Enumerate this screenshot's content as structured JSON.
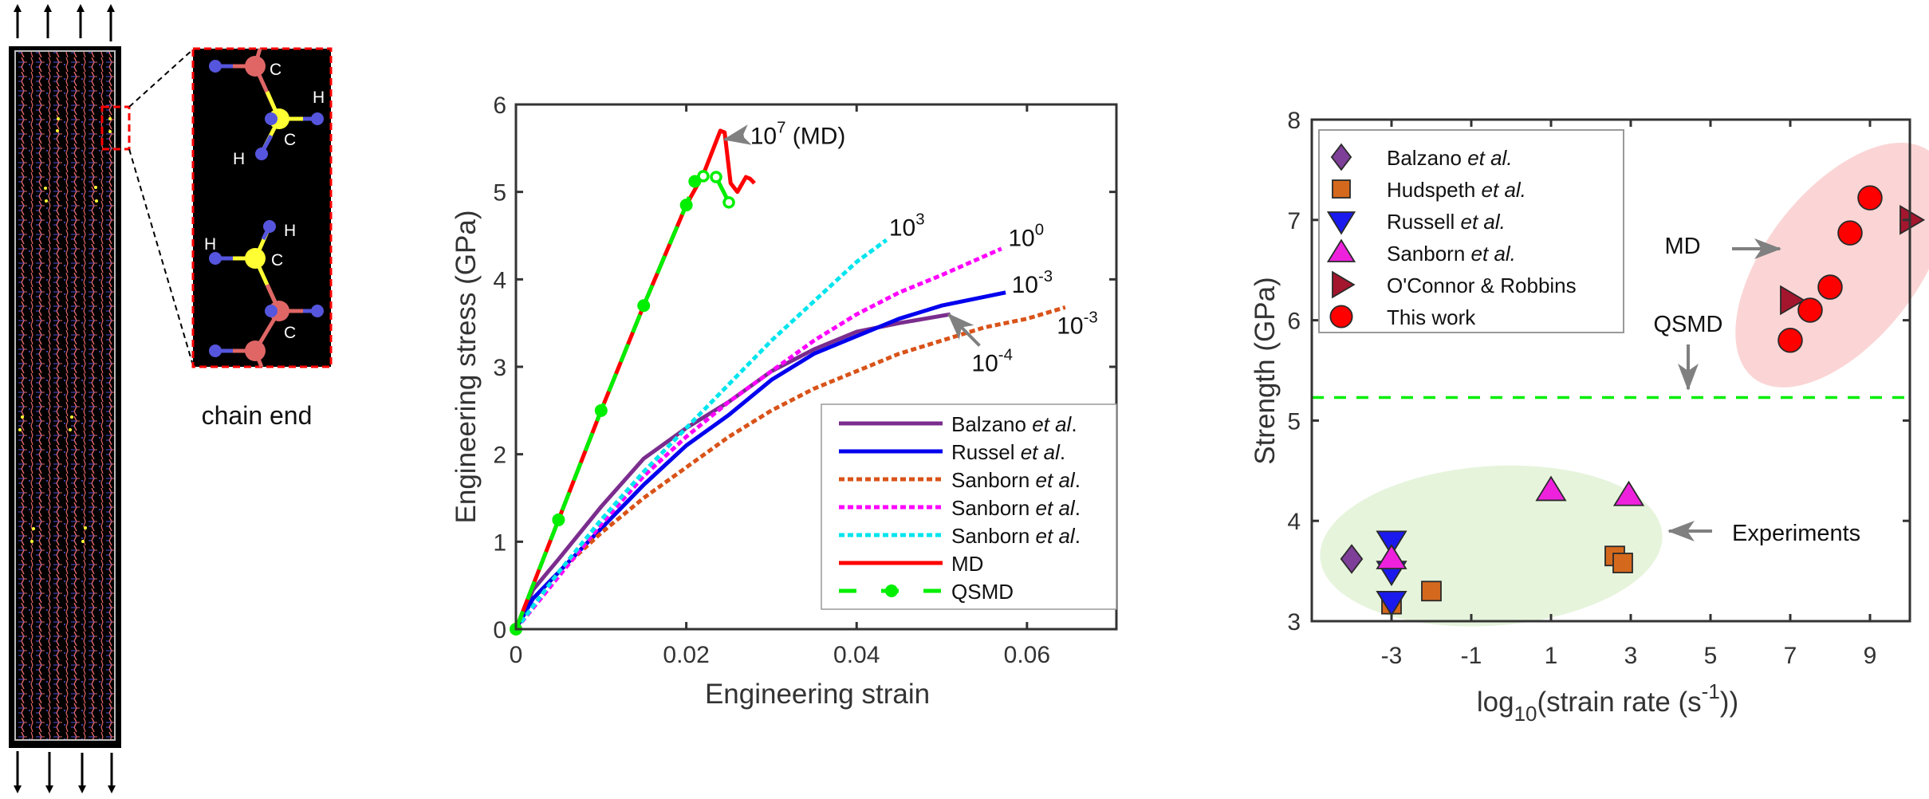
{
  "panel_a": {
    "inset_label": "chain end",
    "atom_labels": [
      "C",
      "H",
      "C",
      "H",
      "H",
      "H",
      "C",
      "C"
    ],
    "colors": {
      "carbon_backbone": "#e06666",
      "chain_end_carbon": "#ffff33",
      "hydrogen": "#5555dd",
      "highlight_box": "#ff0000"
    }
  },
  "chart_data": [
    {
      "type": "line",
      "xlabel": "Engineering strain",
      "ylabel": "Engineering stress (GPa)",
      "xlim": [
        0,
        0.0705
      ],
      "ylim": [
        0,
        6
      ],
      "xticks": [
        0,
        0.02,
        0.04,
        0.06
      ],
      "xtick_labels": [
        "0",
        "0.02",
        "0.04",
        "0.06"
      ],
      "yticks": [
        0,
        1,
        2,
        3,
        4,
        5,
        6
      ],
      "ytick_labels": [
        "0",
        "1",
        "2",
        "3",
        "4",
        "5",
        "6"
      ],
      "legend_position": "bottom-right",
      "series": [
        {
          "name": "Balzano et al.",
          "name_main": "Balzano ",
          "name_ital": "et al",
          "name_end": ".",
          "color": "#7b2d8e",
          "style": "solid",
          "x": [
            0,
            0.002,
            0.005,
            0.01,
            0.015,
            0.02,
            0.025,
            0.03,
            0.035,
            0.04,
            0.045,
            0.051
          ],
          "y": [
            0,
            0.45,
            0.8,
            1.4,
            1.95,
            2.3,
            2.6,
            2.95,
            3.2,
            3.4,
            3.5,
            3.6
          ]
        },
        {
          "name": "Russel et al.",
          "name_main": "Russel ",
          "name_ital": "et al",
          "name_end": ".",
          "color": "#0000ee",
          "style": "solid",
          "x": [
            0,
            0.002,
            0.005,
            0.01,
            0.015,
            0.02,
            0.025,
            0.03,
            0.035,
            0.04,
            0.045,
            0.05,
            0.0575
          ],
          "y": [
            0,
            0.35,
            0.65,
            1.15,
            1.65,
            2.1,
            2.45,
            2.85,
            3.15,
            3.35,
            3.55,
            3.7,
            3.85
          ]
        },
        {
          "name": "Sanborn et al.",
          "name_main": "Sanborn ",
          "name_ital": "et al",
          "name_end": ".",
          "color": "#d95319",
          "style": "dotted",
          "x": [
            0,
            0.005,
            0.01,
            0.015,
            0.02,
            0.025,
            0.03,
            0.035,
            0.04,
            0.045,
            0.05,
            0.055,
            0.06,
            0.0645
          ],
          "y": [
            0,
            0.65,
            1.1,
            1.5,
            1.85,
            2.2,
            2.5,
            2.75,
            2.95,
            3.15,
            3.3,
            3.45,
            3.55,
            3.68
          ]
        },
        {
          "name": "Sanborn et al.",
          "name_main": "Sanborn ",
          "name_ital": "et al",
          "name_end": ".",
          "color": "#ff00ff",
          "style": "dotted",
          "x": [
            0,
            0.005,
            0.01,
            0.015,
            0.02,
            0.025,
            0.03,
            0.035,
            0.04,
            0.045,
            0.05,
            0.057
          ],
          "y": [
            0,
            0.6,
            1.2,
            1.75,
            2.2,
            2.6,
            2.95,
            3.3,
            3.6,
            3.85,
            4.05,
            4.35
          ]
        },
        {
          "name": "Sanborn et al.",
          "name_main": "Sanborn ",
          "name_ital": "et al",
          "name_end": ".",
          "color": "#00e5ee",
          "style": "dotted",
          "x": [
            0,
            0.005,
            0.01,
            0.015,
            0.02,
            0.025,
            0.03,
            0.035,
            0.04,
            0.0435
          ],
          "y": [
            0,
            0.65,
            1.25,
            1.8,
            2.3,
            2.8,
            3.3,
            3.75,
            4.2,
            4.45
          ]
        },
        {
          "name": "MD",
          "name_main": "MD",
          "name_ital": "",
          "name_end": "",
          "color": "#ff0000",
          "style": "solid",
          "x": [
            0,
            0.005,
            0.01,
            0.015,
            0.02,
            0.022,
            0.024,
            0.0245,
            0.0252,
            0.026,
            0.027,
            0.0275,
            0.028
          ],
          "y": [
            0,
            1.25,
            2.5,
            3.7,
            4.85,
            5.2,
            5.7,
            5.68,
            5.1,
            5.0,
            5.17,
            5.15,
            5.1
          ]
        },
        {
          "name": "QSMD",
          "name_main": "QSMD",
          "name_ital": "",
          "name_end": "",
          "color": "#00ee00",
          "style": "dashed-marker",
          "x": [
            0,
            0.005,
            0.01,
            0.015,
            0.02,
            0.021,
            0.022,
            0.0235,
            0.025
          ],
          "y": [
            0,
            1.25,
            2.5,
            3.7,
            4.85,
            5.12,
            5.18,
            5.17,
            4.88
          ]
        }
      ],
      "annotations": [
        {
          "base": "10",
          "exp": "7",
          "suffix": " (MD)",
          "x": 0.0275,
          "y": 5.55,
          "arrow_to": [
            0.0245,
            5.6
          ]
        },
        {
          "base": "10",
          "exp": "3",
          "suffix": "",
          "x": 0.0438,
          "y": 4.5
        },
        {
          "base": "10",
          "exp": "0",
          "suffix": "",
          "x": 0.0578,
          "y": 4.38
        },
        {
          "base": "10",
          "exp": "-3",
          "suffix": "",
          "x": 0.0582,
          "y": 3.85
        },
        {
          "base": "10",
          "exp": "-3",
          "suffix": "",
          "x": 0.0635,
          "y": 3.38
        },
        {
          "base": "10",
          "exp": "-4",
          "suffix": "",
          "x": 0.0535,
          "y": 2.95,
          "arrow_to": [
            0.0508,
            3.6
          ]
        }
      ]
    },
    {
      "type": "scatter",
      "xlabel_main": "log",
      "xlabel_sub": "10",
      "xlabel_rest": "(strain rate (s",
      "xlabel_sup": "-1",
      "xlabel_end": "))",
      "ylabel": "Strength (GPa)",
      "xlim": [
        -5,
        10
      ],
      "ylim": [
        3,
        8
      ],
      "xticks": [
        -3,
        -1,
        1,
        3,
        5,
        7,
        9
      ],
      "xtick_labels": [
        "-3",
        "-1",
        "1",
        "3",
        "5",
        "7",
        "9"
      ],
      "yticks": [
        3,
        4,
        5,
        6,
        7,
        8
      ],
      "ytick_labels": [
        "3",
        "4",
        "5",
        "6",
        "7",
        "8"
      ],
      "legend_position": "top-left",
      "series": [
        {
          "name": "Balzano et al.",
          "name_main": "Balzano ",
          "name_ital": "et al.",
          "marker": "diamond",
          "color": "#7e3f98",
          "points": [
            [
              -4,
              3.62
            ]
          ]
        },
        {
          "name": "Hudspeth et al.",
          "name_main": "Hudspeth ",
          "name_ital": "et al.",
          "marker": "square",
          "color": "#d4691e",
          "points": [
            [
              -3,
              3.17
            ],
            [
              -2,
              3.3
            ],
            [
              2.6,
              3.65
            ],
            [
              2.8,
              3.58
            ]
          ]
        },
        {
          "name": "Russell et al.",
          "name_main": "Russell ",
          "name_ital": "et al.",
          "marker": "triangle-down",
          "color": "#1a1aee",
          "points": [
            [
              -3,
              3.8
            ],
            [
              -3,
              3.5
            ],
            [
              -3,
              3.2
            ]
          ]
        },
        {
          "name": "Sanborn et al.",
          "name_main": "Sanborn ",
          "name_ital": "et al.",
          "marker": "triangle-up",
          "color": "#ee22dd",
          "points": [
            [
              -3,
              3.62
            ],
            [
              1,
              4.3
            ],
            [
              2.95,
              4.25
            ]
          ]
        },
        {
          "name": "O'Connor & Robbins",
          "name_main": "O'Connor & Robbins",
          "name_ital": "",
          "marker": "triangle-right",
          "color": "#a3162e",
          "points": [
            [
              7,
              6.2
            ],
            [
              10,
              7.0
            ]
          ]
        },
        {
          "name": "This work",
          "name_main": "This work",
          "name_ital": "",
          "marker": "circle",
          "color": "#ff0000",
          "points": [
            [
              7,
              5.8
            ],
            [
              7.5,
              6.1
            ],
            [
              8,
              6.33
            ],
            [
              8.5,
              6.87
            ],
            [
              9,
              7.22
            ]
          ]
        }
      ],
      "reference_line": {
        "label": "QSMD",
        "y": 5.23,
        "color": "#00ee00",
        "style": "dashed"
      },
      "regions": [
        {
          "label": "MD",
          "color": "#fbd5d5",
          "center": [
            8.3,
            6.55
          ],
          "note": "ellipse enclosing MD results"
        },
        {
          "label": "Experiments",
          "color": "#e6f4dc",
          "center": [
            -0.5,
            3.75
          ],
          "note": "ellipse enclosing experimental results"
        }
      ]
    }
  ]
}
